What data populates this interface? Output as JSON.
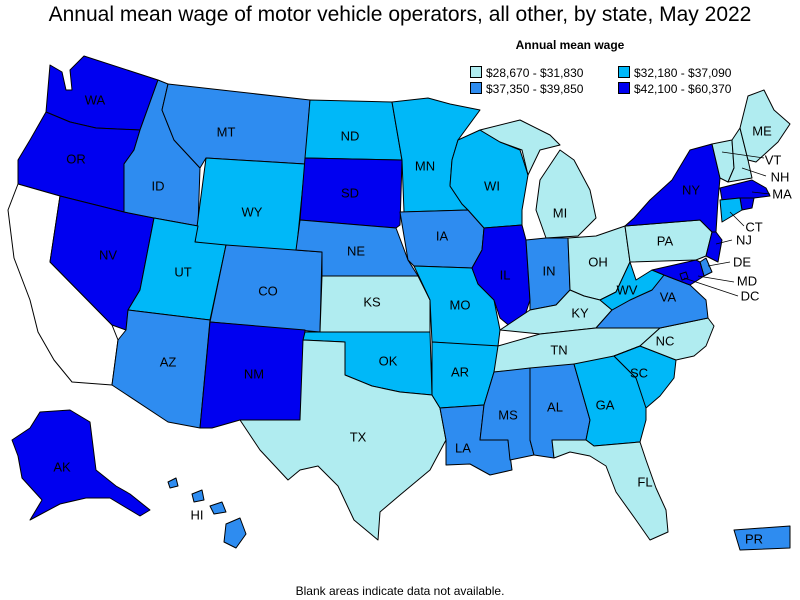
{
  "title": "Annual mean wage of motor vehicle operators, all other, by state, May 2022",
  "legend": {
    "title": "Annual mean wage",
    "bins": [
      {
        "id": "b1",
        "label": "$28,670 - $31,830",
        "color": "#b0ecf0"
      },
      {
        "id": "b2",
        "label": "$32,180 - $37,090",
        "color": "#00b8f8"
      },
      {
        "id": "b3",
        "label": "$37,350 - $39,850",
        "color": "#2e8cf0"
      },
      {
        "id": "b4",
        "label": "$42,100 - $60,370",
        "color": "#0000f0"
      }
    ]
  },
  "no_data_color": "#ffffff",
  "footnote": "Blank areas indicate data not available.",
  "states": {
    "WA": "b4",
    "OR": "b4",
    "CA": null,
    "NV": "b4",
    "ID": "b3",
    "MT": "b3",
    "WY": "b2",
    "UT": "b2",
    "AZ": "b3",
    "CO": "b3",
    "NM": "b4",
    "ND": "b2",
    "SD": "b4",
    "NE": "b3",
    "KS": "b1",
    "OK": "b2",
    "TX": "b1",
    "MN": "b2",
    "IA": "b3",
    "MO": "b2",
    "AR": "b2",
    "LA": "b3",
    "WI": "b2",
    "IL": "b4",
    "MI": "b1",
    "IN": "b3",
    "OH": "b1",
    "KY": "b1",
    "TN": "b1",
    "MS": "b3",
    "AL": "b3",
    "GA": "b2",
    "FL": "b1",
    "SC": "b2",
    "NC": "b1",
    "VA": "b3",
    "WV": "b2",
    "PA": "b1",
    "NY": "b4",
    "VT": "b1",
    "NH": "b1",
    "ME": "b1",
    "MA": "b4",
    "RI": "b4",
    "CT": "b2",
    "NJ": "b4",
    "DE": "b3",
    "MD": "b4",
    "DC": "b4",
    "AK": "b4",
    "HI": "b3",
    "PR": "b3"
  },
  "labels": {
    "WA": "WA",
    "OR": "OR",
    "NV": "NV",
    "ID": "ID",
    "MT": "MT",
    "WY": "WY",
    "UT": "UT",
    "AZ": "AZ",
    "CO": "CO",
    "NM": "NM",
    "ND": "ND",
    "SD": "SD",
    "NE": "NE",
    "KS": "KS",
    "OK": "OK",
    "TX": "TX",
    "MN": "MN",
    "IA": "IA",
    "MO": "MO",
    "AR": "AR",
    "LA": "LA",
    "WI": "WI",
    "IL": "IL",
    "MI": "MI",
    "IN": "IN",
    "OH": "OH",
    "KY": "KY",
    "TN": "TN",
    "MS": "MS",
    "AL": "AL",
    "GA": "GA",
    "FL": "FL",
    "SC": "SC",
    "NC": "NC",
    "VA": "VA",
    "WV": "WV",
    "PA": "PA",
    "NY": "NY",
    "VT": "VT",
    "NH": "NH",
    "ME": "ME",
    "MA": "MA",
    "CT": "CT",
    "NJ": "NJ",
    "DE": "DE",
    "MD": "MD",
    "DC": "DC",
    "AK": "AK",
    "HI": "HI",
    "PR": "PR"
  }
}
